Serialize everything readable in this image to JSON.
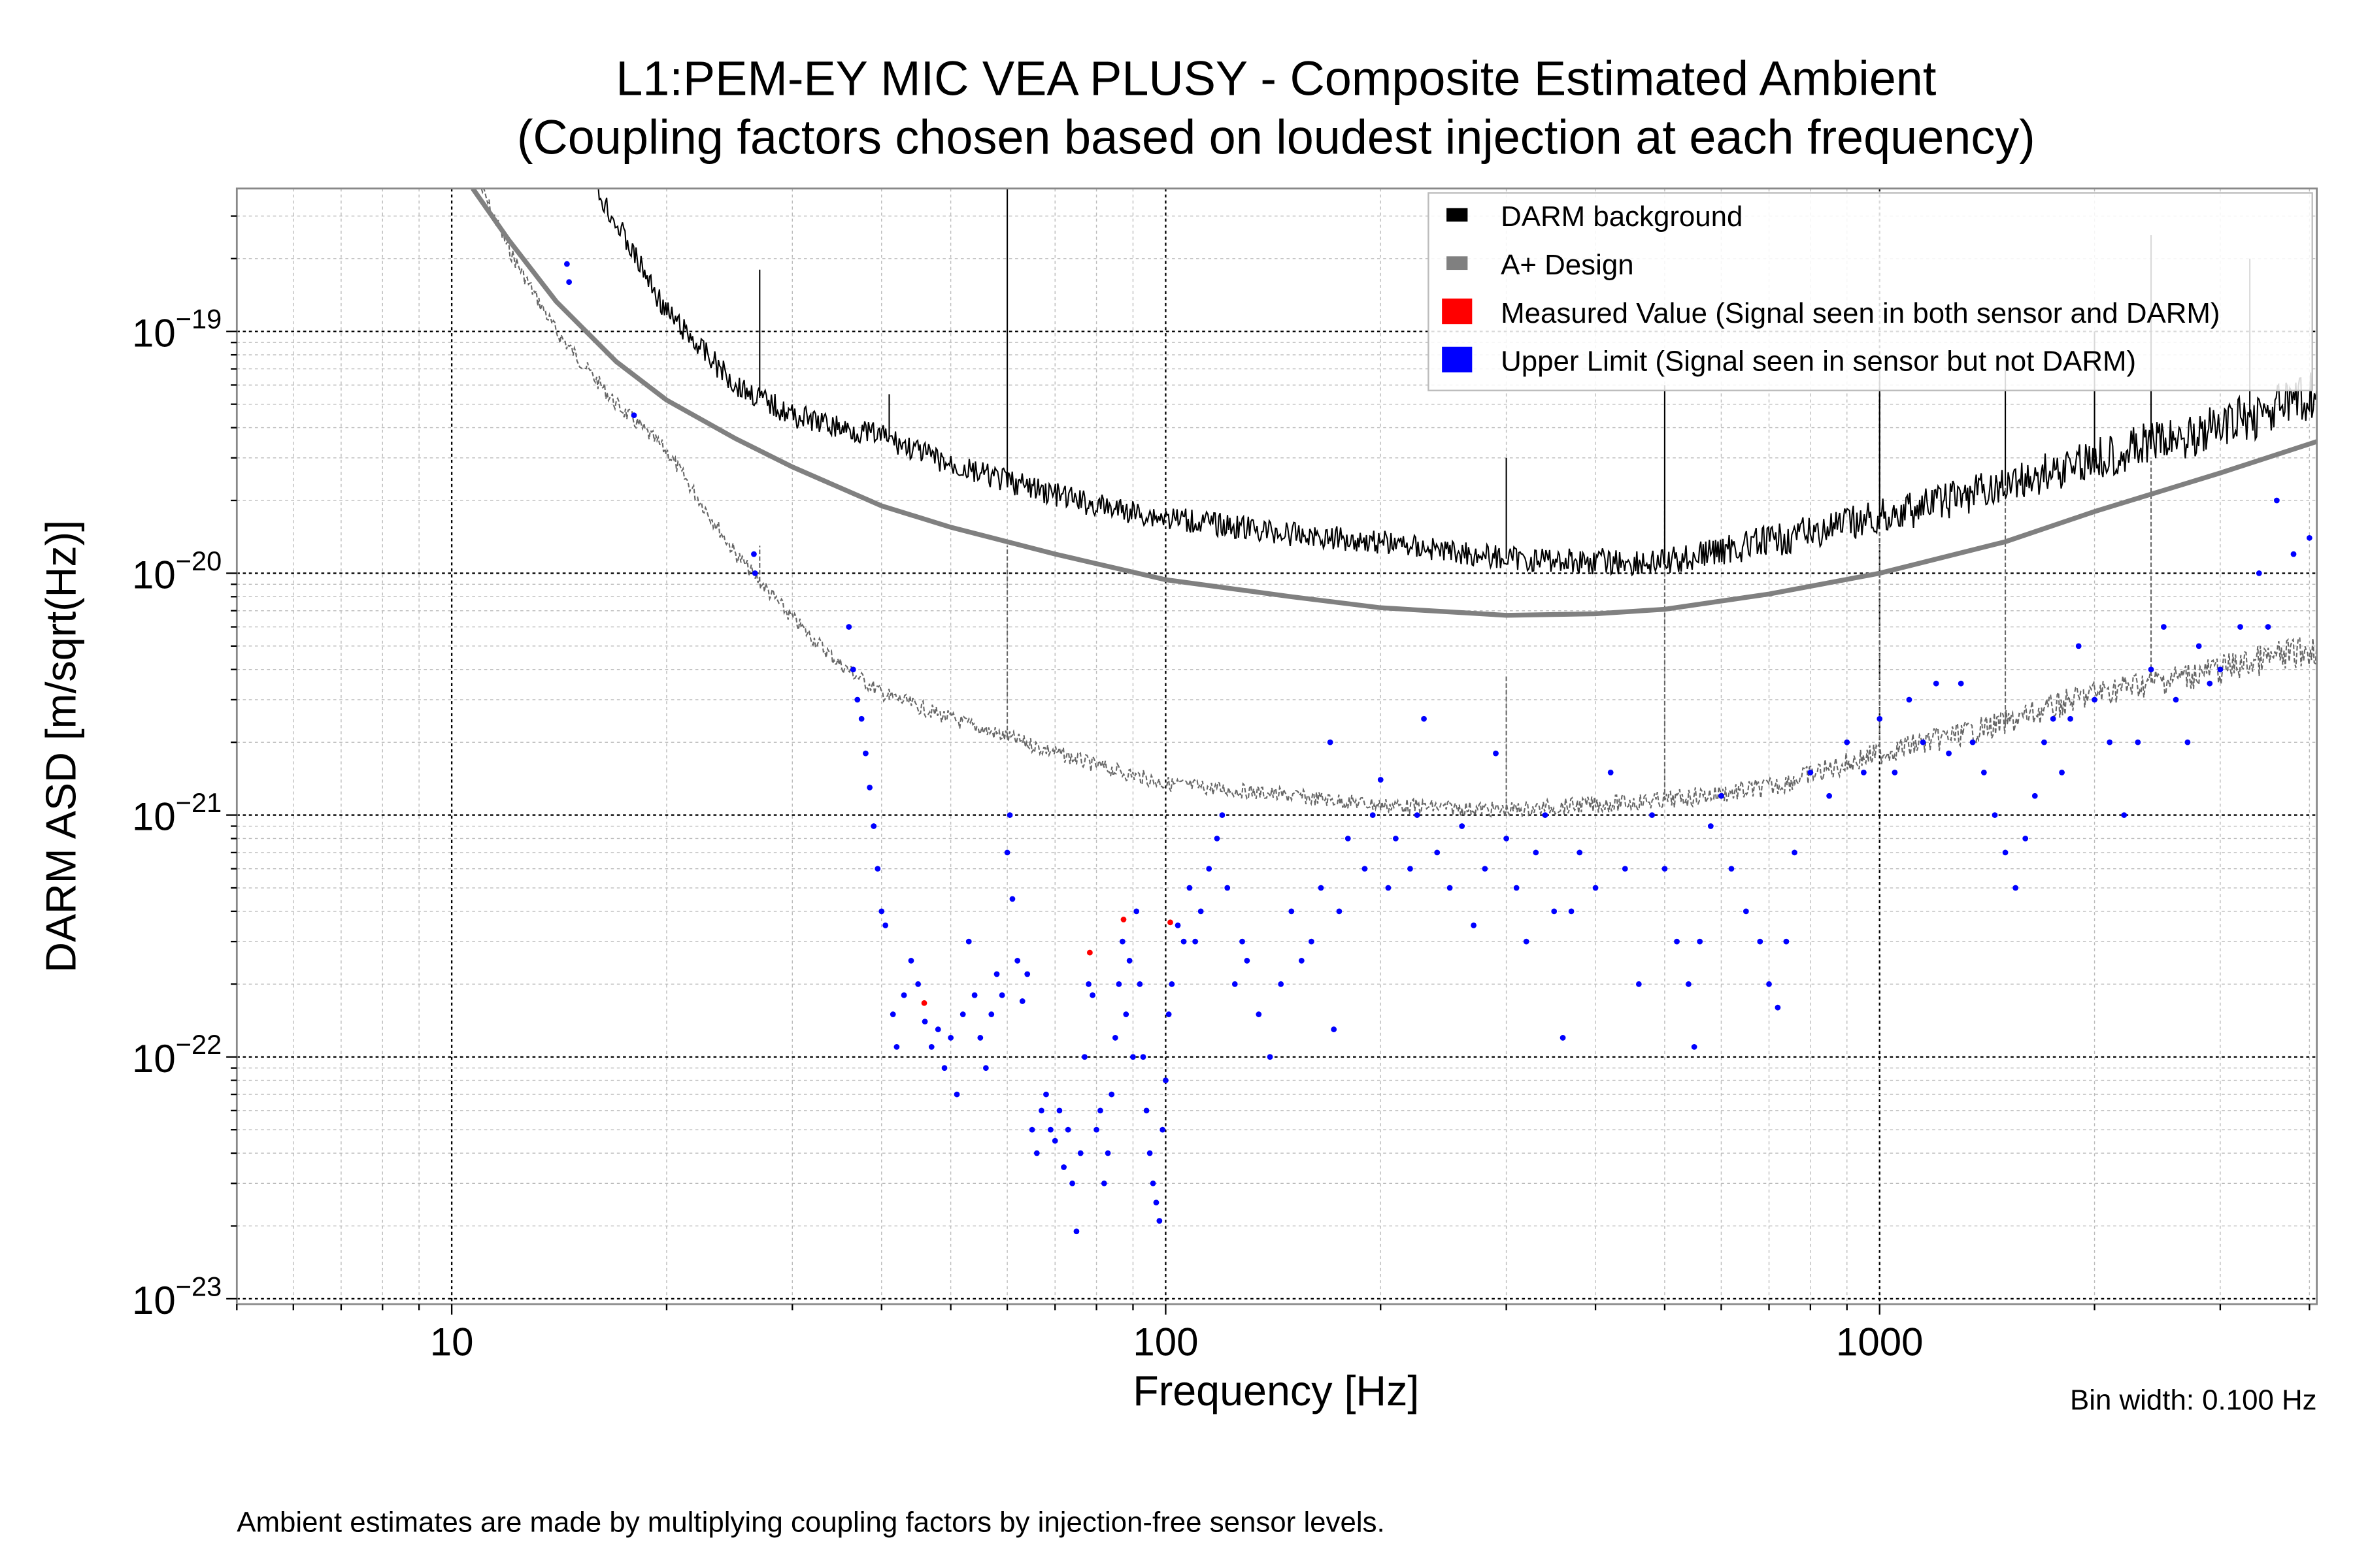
{
  "chart_data": {
    "type": "line",
    "title": "L1:PEM-EY MIC VEA PLUSY - Composite Estimated Ambient",
    "subtitle": "(Coupling factors chosen based on loudest injection at each frequency)",
    "xlabel": "Frequency [Hz]",
    "ylabel": "DARM ASD [m/sqrt(Hz)]",
    "xscale": "log",
    "yscale": "log",
    "xlim": [
      5,
      4096
    ],
    "ylim": [
      9.5e-24,
      3.9e-19
    ],
    "grid": true,
    "legend_position": "top-right",
    "x_ticks": [
      {
        "value": 10,
        "label": "10"
      },
      {
        "value": 100,
        "label": "100"
      },
      {
        "value": 1000,
        "label": "1000"
      }
    ],
    "y_ticks": [
      {
        "value": 1e-19,
        "base": "10",
        "exp": "−19"
      },
      {
        "value": 1e-20,
        "base": "10",
        "exp": "−20"
      },
      {
        "value": 1e-21,
        "base": "10",
        "exp": "−21"
      },
      {
        "value": 1e-22,
        "base": "10",
        "exp": "−22"
      },
      {
        "value": 1e-23,
        "base": "10",
        "exp": "−23"
      }
    ],
    "annotation_bin_width": "Bin width: 0.100 Hz",
    "footnote": "Ambient estimates are made by multiplying coupling factors by injection-free sensor levels.",
    "colors": {
      "darm": "#000000",
      "aplus": "#808080",
      "measured": "#ff0000",
      "upper": "#0000ff",
      "dashed": "#666666"
    },
    "series": [
      {
        "name": "DARM background",
        "style": "line",
        "color": "#000000",
        "x": [
          15.9,
          17,
          20,
          25,
          30,
          35,
          40,
          50,
          60,
          80,
          100,
          150,
          200,
          300,
          400,
          500,
          600,
          700,
          1000,
          1500,
          2000,
          3000,
          4096
        ],
        "y": [
          3.9e-19,
          2.8e-19,
          1.2e-19,
          6e-20,
          4.5e-20,
          4e-20,
          3.7e-20,
          2.8e-20,
          2.4e-20,
          1.9e-20,
          1.7e-20,
          1.45e-20,
          1.35e-20,
          1.15e-20,
          1.12e-20,
          1.1e-20,
          1.25e-20,
          1.35e-20,
          1.7e-20,
          2.3e-20,
          3e-20,
          4e-20,
          5.5e-20
        ],
        "spikes": [
          [
            27,
            1.8e-19
          ],
          [
            41,
            5.5e-20
          ],
          [
            60,
            3.9e-19
          ],
          [
            300,
            3e-20
          ],
          [
            500,
            6e-20
          ],
          [
            1000,
            7e-20
          ],
          [
            1500,
            8e-20
          ],
          [
            2000,
            1e-19
          ],
          [
            2400,
            2.5e-19
          ],
          [
            3300,
            2e-19
          ]
        ]
      },
      {
        "name": "A+ Design",
        "style": "thick-line",
        "color": "#808080",
        "x": [
          10.7,
          12,
          14,
          17,
          20,
          25,
          30,
          40,
          50,
          70,
          100,
          150,
          200,
          300,
          400,
          500,
          700,
          1000,
          1500,
          2000,
          3000,
          4096
        ],
        "y": [
          3.9e-19,
          2.4e-19,
          1.33e-19,
          7.5e-20,
          5.2e-20,
          3.6e-20,
          2.75e-20,
          1.9e-20,
          1.55e-20,
          1.2e-20,
          9.4e-21,
          8e-21,
          7.2e-21,
          6.7e-21,
          6.8e-21,
          7.1e-21,
          8.2e-21,
          1e-20,
          1.35e-20,
          1.8e-20,
          2.6e-20,
          3.5e-20
        ]
      },
      {
        "style": "dashed-line",
        "color": "#666666",
        "x": [
          11,
          12,
          14,
          17,
          20,
          25,
          30,
          35,
          40,
          50,
          60,
          80,
          100,
          150,
          200,
          300,
          500,
          700,
          1000,
          1500,
          2000,
          3000,
          4096
        ],
        "y": [
          3.9e-19,
          2.2e-19,
          1e-19,
          5e-20,
          3.2e-20,
          1.2e-20,
          6.5e-21,
          4.2e-21,
          3.2e-21,
          2.5e-21,
          2.1e-21,
          1.6e-21,
          1.35e-21,
          1.2e-21,
          1.1e-21,
          1.05e-21,
          1.15e-21,
          1.3e-21,
          1.8e-21,
          2.4e-21,
          3.2e-21,
          4e-21,
          4.9e-21
        ],
        "spikes": [
          [
            27,
            1.3e-20
          ],
          [
            41,
            3e-21
          ],
          [
            60,
            1.3e-20
          ],
          [
            300,
            3.8e-21
          ],
          [
            500,
            2e-20
          ],
          [
            1000,
            2.5e-20
          ],
          [
            1500,
            2.5e-20
          ],
          [
            2400,
            3e-20
          ]
        ]
      },
      {
        "name": "Measured Value (Signal seen in both sensor and DARM)",
        "style": "scatter",
        "color": "#ff0000",
        "points": [
          [
            45.9,
            1.67e-22
          ],
          [
            78.3,
            2.7e-22
          ],
          [
            87.3,
            3.7e-22
          ],
          [
            101.5,
            3.6e-22
          ]
        ]
      },
      {
        "name": "Upper Limit (Signal seen in sensor but not DARM)",
        "style": "scatter",
        "color": "#0000ff",
        "points": [
          [
            14.5,
            1.9e-19
          ],
          [
            14.6,
            1.6e-19
          ],
          [
            18,
            4.5e-20
          ],
          [
            26.5,
            1.2e-20
          ],
          [
            26.6,
            1e-20
          ],
          [
            36,
            6e-21
          ],
          [
            36.5,
            4e-21
          ],
          [
            37,
            3e-21
          ],
          [
            37.5,
            2.5e-21
          ],
          [
            38,
            1.8e-21
          ],
          [
            38.5,
            1.3e-21
          ],
          [
            39,
            9e-22
          ],
          [
            39.5,
            6e-22
          ],
          [
            40,
            4e-22
          ],
          [
            40.5,
            3.5e-22
          ],
          [
            41.5,
            1.5e-22
          ],
          [
            42,
            1.1e-22
          ],
          [
            43,
            1.8e-22
          ],
          [
            44,
            2.5e-22
          ],
          [
            45,
            2e-22
          ],
          [
            46,
            1.4e-22
          ],
          [
            47,
            1.1e-22
          ],
          [
            48,
            1.3e-22
          ],
          [
            49,
            9e-23
          ],
          [
            50,
            1.2e-22
          ],
          [
            51,
            7e-23
          ],
          [
            52,
            1.5e-22
          ],
          [
            53,
            3e-22
          ],
          [
            54,
            1.8e-22
          ],
          [
            55,
            1.2e-22
          ],
          [
            56,
            9e-23
          ],
          [
            57,
            1.5e-22
          ],
          [
            58,
            2.2e-22
          ],
          [
            59,
            1.8e-22
          ],
          [
            60,
            7e-22
          ],
          [
            60.5,
            1e-21
          ],
          [
            61,
            4.5e-22
          ],
          [
            62,
            2.5e-22
          ],
          [
            63,
            1.7e-22
          ],
          [
            64,
            2.2e-22
          ],
          [
            65,
            5e-23
          ],
          [
            66,
            4e-23
          ],
          [
            67,
            6e-23
          ],
          [
            68,
            7e-23
          ],
          [
            69,
            5e-23
          ],
          [
            70,
            4.5e-23
          ],
          [
            71,
            6e-23
          ],
          [
            72,
            3.5e-23
          ],
          [
            73,
            5e-23
          ],
          [
            74,
            3e-23
          ],
          [
            75,
            1.9e-23
          ],
          [
            76,
            4e-23
          ],
          [
            77,
            1e-22
          ],
          [
            78,
            2e-22
          ],
          [
            79,
            1.8e-22
          ],
          [
            80,
            5e-23
          ],
          [
            81,
            6e-23
          ],
          [
            82,
            3e-23
          ],
          [
            83,
            4e-23
          ],
          [
            84,
            7e-23
          ],
          [
            85,
            1.2e-22
          ],
          [
            86,
            2e-22
          ],
          [
            87,
            3e-22
          ],
          [
            88,
            1.5e-22
          ],
          [
            89,
            2.5e-22
          ],
          [
            90,
            1e-22
          ],
          [
            91,
            4e-22
          ],
          [
            92,
            2e-22
          ],
          [
            93,
            1e-22
          ],
          [
            94,
            6e-23
          ],
          [
            95,
            4e-23
          ],
          [
            96,
            3e-23
          ],
          [
            97,
            2.5e-23
          ],
          [
            98,
            2.1e-23
          ],
          [
            99,
            5e-23
          ],
          [
            100,
            8e-23
          ],
          [
            101,
            1.5e-22
          ],
          [
            102,
            2e-22
          ],
          [
            104,
            3.5e-22
          ],
          [
            106,
            3e-22
          ],
          [
            108,
            5e-22
          ],
          [
            110,
            3e-22
          ],
          [
            112,
            4e-22
          ],
          [
            115,
            6e-22
          ],
          [
            118,
            8e-22
          ],
          [
            120,
            1e-21
          ],
          [
            122,
            5e-22
          ],
          [
            125,
            2e-22
          ],
          [
            128,
            3e-22
          ],
          [
            130,
            2.5e-22
          ],
          [
            135,
            1.5e-22
          ],
          [
            140,
            1e-22
          ],
          [
            145,
            2e-22
          ],
          [
            150,
            4e-22
          ],
          [
            155,
            2.5e-22
          ],
          [
            160,
            3e-22
          ],
          [
            165,
            5e-22
          ],
          [
            170,
            2e-21
          ],
          [
            172,
            1.3e-22
          ],
          [
            175,
            4e-22
          ],
          [
            180,
            8e-22
          ],
          [
            190,
            6e-22
          ],
          [
            195,
            1e-21
          ],
          [
            200,
            1.4e-21
          ],
          [
            205,
            5e-22
          ],
          [
            210,
            8e-22
          ],
          [
            220,
            6e-22
          ],
          [
            225,
            1e-21
          ],
          [
            230,
            2.5e-21
          ],
          [
            240,
            7e-22
          ],
          [
            250,
            5e-22
          ],
          [
            260,
            9e-22
          ],
          [
            270,
            3.5e-22
          ],
          [
            280,
            6e-22
          ],
          [
            290,
            1.8e-21
          ],
          [
            300,
            8e-22
          ],
          [
            310,
            5e-22
          ],
          [
            320,
            3e-22
          ],
          [
            330,
            7e-22
          ],
          [
            340,
            1e-21
          ],
          [
            350,
            4e-22
          ],
          [
            360,
            1.2e-22
          ],
          [
            370,
            4e-22
          ],
          [
            380,
            7e-22
          ],
          [
            400,
            5e-22
          ],
          [
            420,
            1.5e-21
          ],
          [
            440,
            6e-22
          ],
          [
            460,
            2e-22
          ],
          [
            480,
            1e-21
          ],
          [
            500,
            6e-22
          ],
          [
            520,
            3e-22
          ],
          [
            540,
            2e-22
          ],
          [
            550,
            1.1e-22
          ],
          [
            560,
            3e-22
          ],
          [
            580,
            9e-22
          ],
          [
            600,
            1.2e-21
          ],
          [
            620,
            6e-22
          ],
          [
            650,
            4e-22
          ],
          [
            680,
            3e-22
          ],
          [
            700,
            2e-22
          ],
          [
            720,
            1.6e-22
          ],
          [
            740,
            3e-22
          ],
          [
            760,
            7e-22
          ],
          [
            800,
            1.5e-21
          ],
          [
            850,
            1.2e-21
          ],
          [
            900,
            2e-21
          ],
          [
            950,
            1.5e-21
          ],
          [
            1000,
            2.5e-21
          ],
          [
            1050,
            1.5e-21
          ],
          [
            1100,
            3e-21
          ],
          [
            1150,
            2e-21
          ],
          [
            1200,
            3.5e-21
          ],
          [
            1250,
            1.8e-21
          ],
          [
            1300,
            3.5e-21
          ],
          [
            1350,
            2e-21
          ],
          [
            1400,
            1.5e-21
          ],
          [
            1450,
            1e-21
          ],
          [
            1500,
            7e-22
          ],
          [
            1550,
            5e-22
          ],
          [
            1600,
            8e-22
          ],
          [
            1650,
            1.2e-21
          ],
          [
            1700,
            2e-21
          ],
          [
            1750,
            2.5e-21
          ],
          [
            1800,
            1.5e-21
          ],
          [
            1850,
            2.5e-21
          ],
          [
            1900,
            5e-21
          ],
          [
            2000,
            3e-21
          ],
          [
            2100,
            2e-21
          ],
          [
            2200,
            1e-21
          ],
          [
            2300,
            2e-21
          ],
          [
            2400,
            4e-21
          ],
          [
            2500,
            6e-21
          ],
          [
            2600,
            3e-21
          ],
          [
            2700,
            2e-21
          ],
          [
            2800,
            5e-21
          ],
          [
            2900,
            3.5e-21
          ],
          [
            3000,
            4e-21
          ],
          [
            3200,
            6e-21
          ],
          [
            3400,
            1e-20
          ],
          [
            3500,
            6e-21
          ],
          [
            3600,
            2e-20
          ],
          [
            3800,
            1.2e-20
          ],
          [
            4000,
            1.4e-20
          ]
        ]
      }
    ]
  }
}
